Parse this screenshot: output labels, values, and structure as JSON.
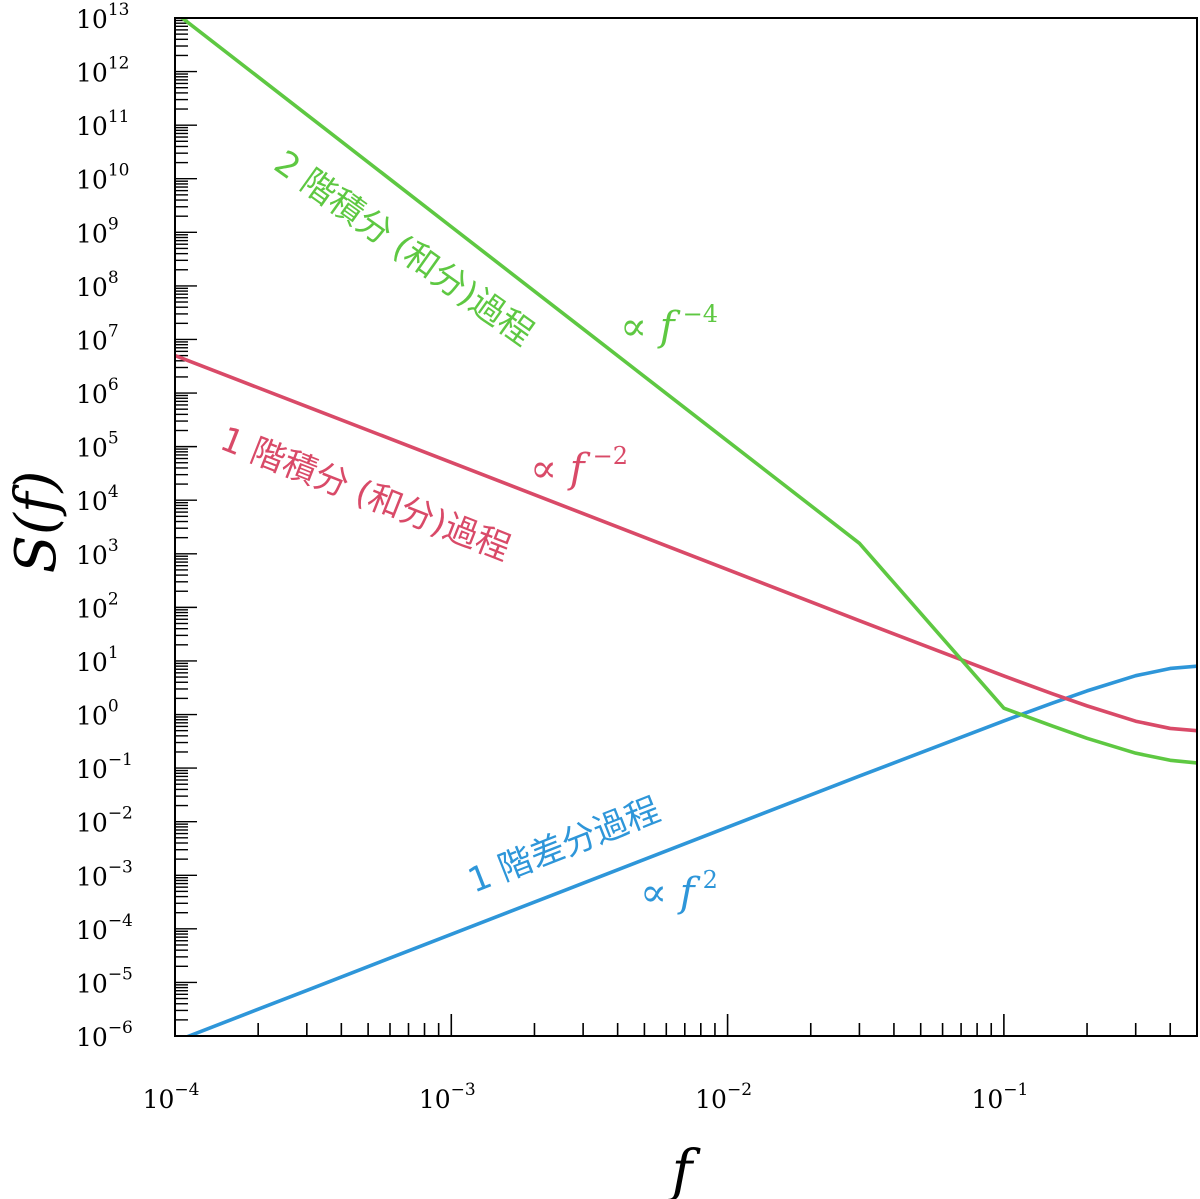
{
  "chart_data": {
    "type": "line",
    "xscale": "log",
    "yscale": "log",
    "xlim": [
      0.0001,
      0.5
    ],
    "ylim": [
      1e-06,
      10000000000000
    ],
    "xlabel": "f",
    "ylabel": "S(f)",
    "x_ticks": [
      {
        "base": "10",
        "exp": "−4",
        "value": 0.0001
      },
      {
        "base": "10",
        "exp": "−3",
        "value": 0.001
      },
      {
        "base": "10",
        "exp": "−2",
        "value": 0.01
      },
      {
        "base": "10",
        "exp": "−1",
        "value": 0.1
      }
    ],
    "y_ticks": [
      {
        "base": "10",
        "exp": "13",
        "value": 10000000000000.0
      },
      {
        "base": "10",
        "exp": "12",
        "value": 1000000000000.0
      },
      {
        "base": "10",
        "exp": "11",
        "value": 100000000000.0
      },
      {
        "base": "10",
        "exp": "10",
        "value": 10000000000.0
      },
      {
        "base": "10",
        "exp": "9",
        "value": 1000000000.0
      },
      {
        "base": "10",
        "exp": "8",
        "value": 100000000.0
      },
      {
        "base": "10",
        "exp": "7",
        "value": 10000000.0
      },
      {
        "base": "10",
        "exp": "6",
        "value": 1000000.0
      },
      {
        "base": "10",
        "exp": "5",
        "value": 100000.0
      },
      {
        "base": "10",
        "exp": "4",
        "value": 10000.0
      },
      {
        "base": "10",
        "exp": "3",
        "value": 1000.0
      },
      {
        "base": "10",
        "exp": "2",
        "value": 100.0
      },
      {
        "base": "10",
        "exp": "1",
        "value": 10.0
      },
      {
        "base": "10",
        "exp": "0",
        "value": 1
      },
      {
        "base": "10",
        "exp": "−1",
        "value": 0.1
      },
      {
        "base": "10",
        "exp": "−2",
        "value": 0.01
      },
      {
        "base": "10",
        "exp": "−3",
        "value": 0.001
      },
      {
        "base": "10",
        "exp": "−4",
        "value": 0.0001
      },
      {
        "base": "10",
        "exp": "−5",
        "value": 1e-05
      },
      {
        "base": "10",
        "exp": "−6",
        "value": 1e-06
      }
    ],
    "series": [
      {
        "key": "diff1",
        "color": "#2e96d9",
        "x": [
          0.0001,
          0.0003,
          0.001,
          0.003,
          0.01,
          0.03,
          0.1,
          0.15,
          0.2,
          0.3,
          0.4,
          0.5
        ],
        "y": [
          7.9e-07,
          7.1e-06,
          7.9e-05,
          0.00071,
          0.0079,
          0.071,
          0.76,
          1.64,
          2.76,
          5.31,
          7.24,
          8.0
        ]
      },
      {
        "key": "int1",
        "color": "#d94a68",
        "x": [
          0.0001,
          0.0003,
          0.001,
          0.003,
          0.01,
          0.03,
          0.1,
          0.15,
          0.2,
          0.3,
          0.4,
          0.5
        ],
        "y": [
          5000000,
          560000,
          50700,
          5630,
          507,
          56.3,
          5.24,
          2.44,
          1.45,
          0.75,
          0.55,
          0.5
        ]
      },
      {
        "key": "int2",
        "color": "#5ec842",
        "x": [
          0.0001,
          0.0003,
          0.001,
          0.003,
          0.01,
          0.03,
          0.1,
          0.15,
          0.2,
          0.3,
          0.4,
          0.5
        ],
        "y": [
          12700000000000,
          157000000000,
          1270000000,
          15700000,
          127000,
          1570,
          1.31,
          0.61,
          0.36,
          0.19,
          0.14,
          0.125
        ]
      }
    ],
    "annotations": [
      {
        "key": "int2",
        "text": "2 階積分 (和分)過程",
        "color": "#5ec842",
        "exp": "−4"
      },
      {
        "key": "int1",
        "text": "1 階積分 (和分)過程",
        "color": "#d94a68",
        "exp": "−2"
      },
      {
        "key": "diff1",
        "text": "1 階差分過程",
        "color": "#2e96d9",
        "exp": "2"
      }
    ],
    "proportional_symbol": "∝",
    "proportional_var": "f"
  }
}
